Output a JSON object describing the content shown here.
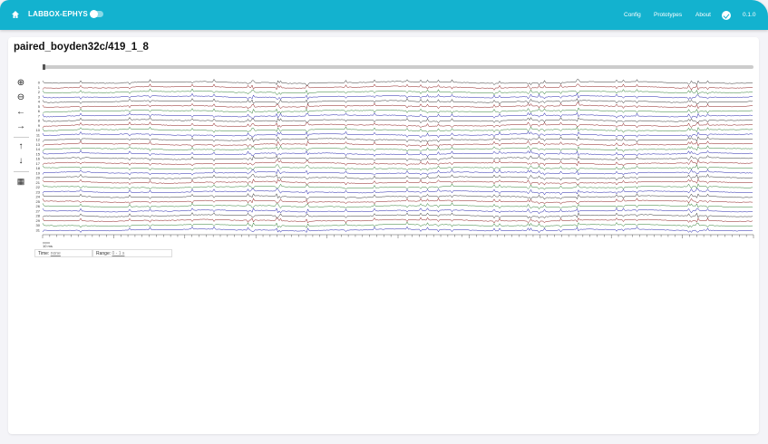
{
  "appbar": {
    "title": "LABBOX-EPHYS",
    "nav": [
      "Config",
      "Prototypes",
      "About"
    ],
    "version": "0.1.0",
    "color": "#13b2cf"
  },
  "page": {
    "title": "paired_boyden32c/419_1_8"
  },
  "toolbar": [
    "zoom-in-icon",
    "zoom-out-icon",
    "arrow-left-icon",
    "arrow-right-icon",
    "arrow-up-icon",
    "arrow-down-icon",
    "grid-icon"
  ],
  "plot": {
    "channels": [
      "0",
      "1",
      "2",
      "3",
      "4",
      "5",
      "6",
      "7",
      "8",
      "9",
      "10",
      "11",
      "12",
      "13",
      "14",
      "15",
      "16",
      "17",
      "18",
      "19",
      "20",
      "21",
      "22",
      "23",
      "24",
      "25",
      "26",
      "27",
      "28",
      "29",
      "30",
      "31"
    ],
    "colors": [
      "#333333",
      "#8b1a1a",
      "#2e7d32",
      "#2222aa"
    ],
    "scale_bar": "10 ms"
  },
  "status": {
    "time_label": "Time:",
    "time_value": "none",
    "range_label": "Range:",
    "range_value": "0 - 1 s"
  }
}
